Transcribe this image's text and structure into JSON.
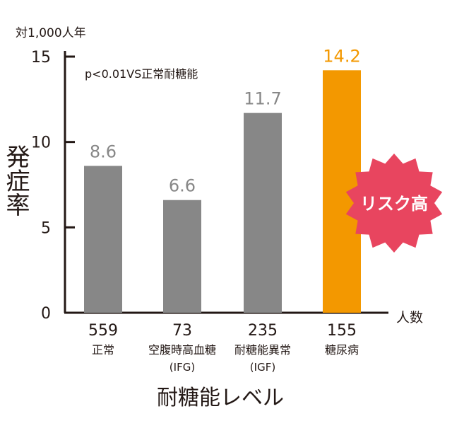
{
  "chart_data": {
    "type": "bar",
    "unit_label": "対1,000人年",
    "ylabel": "発症率",
    "xlabel": "耐糖能レベル",
    "x_end_label": "人数",
    "annotation": "p<0.01VS正常耐糖能",
    "callout": "リスク高",
    "ylim": [
      0,
      15
    ],
    "yticks": [
      0,
      5,
      10,
      15
    ],
    "categories": [
      {
        "count": "559",
        "name": "正常",
        "sub": ""
      },
      {
        "count": "73",
        "name": "空腹時高血糖",
        "sub": "(IFG)"
      },
      {
        "count": "235",
        "name": "耐糖能異常",
        "sub": "(IGF)"
      },
      {
        "count": "155",
        "name": "糖尿病",
        "sub": ""
      }
    ],
    "values": [
      8.6,
      6.6,
      11.7,
      14.2
    ],
    "value_labels": [
      "8.6",
      "6.6",
      "11.7",
      "14.2"
    ],
    "highlight_index": 3,
    "colors": {
      "bar": "#878787",
      "highlight": "#f39800",
      "value_label": "#878787",
      "highlight_label": "#f39800",
      "callout": "#e8455f",
      "axis": "#231815"
    }
  }
}
